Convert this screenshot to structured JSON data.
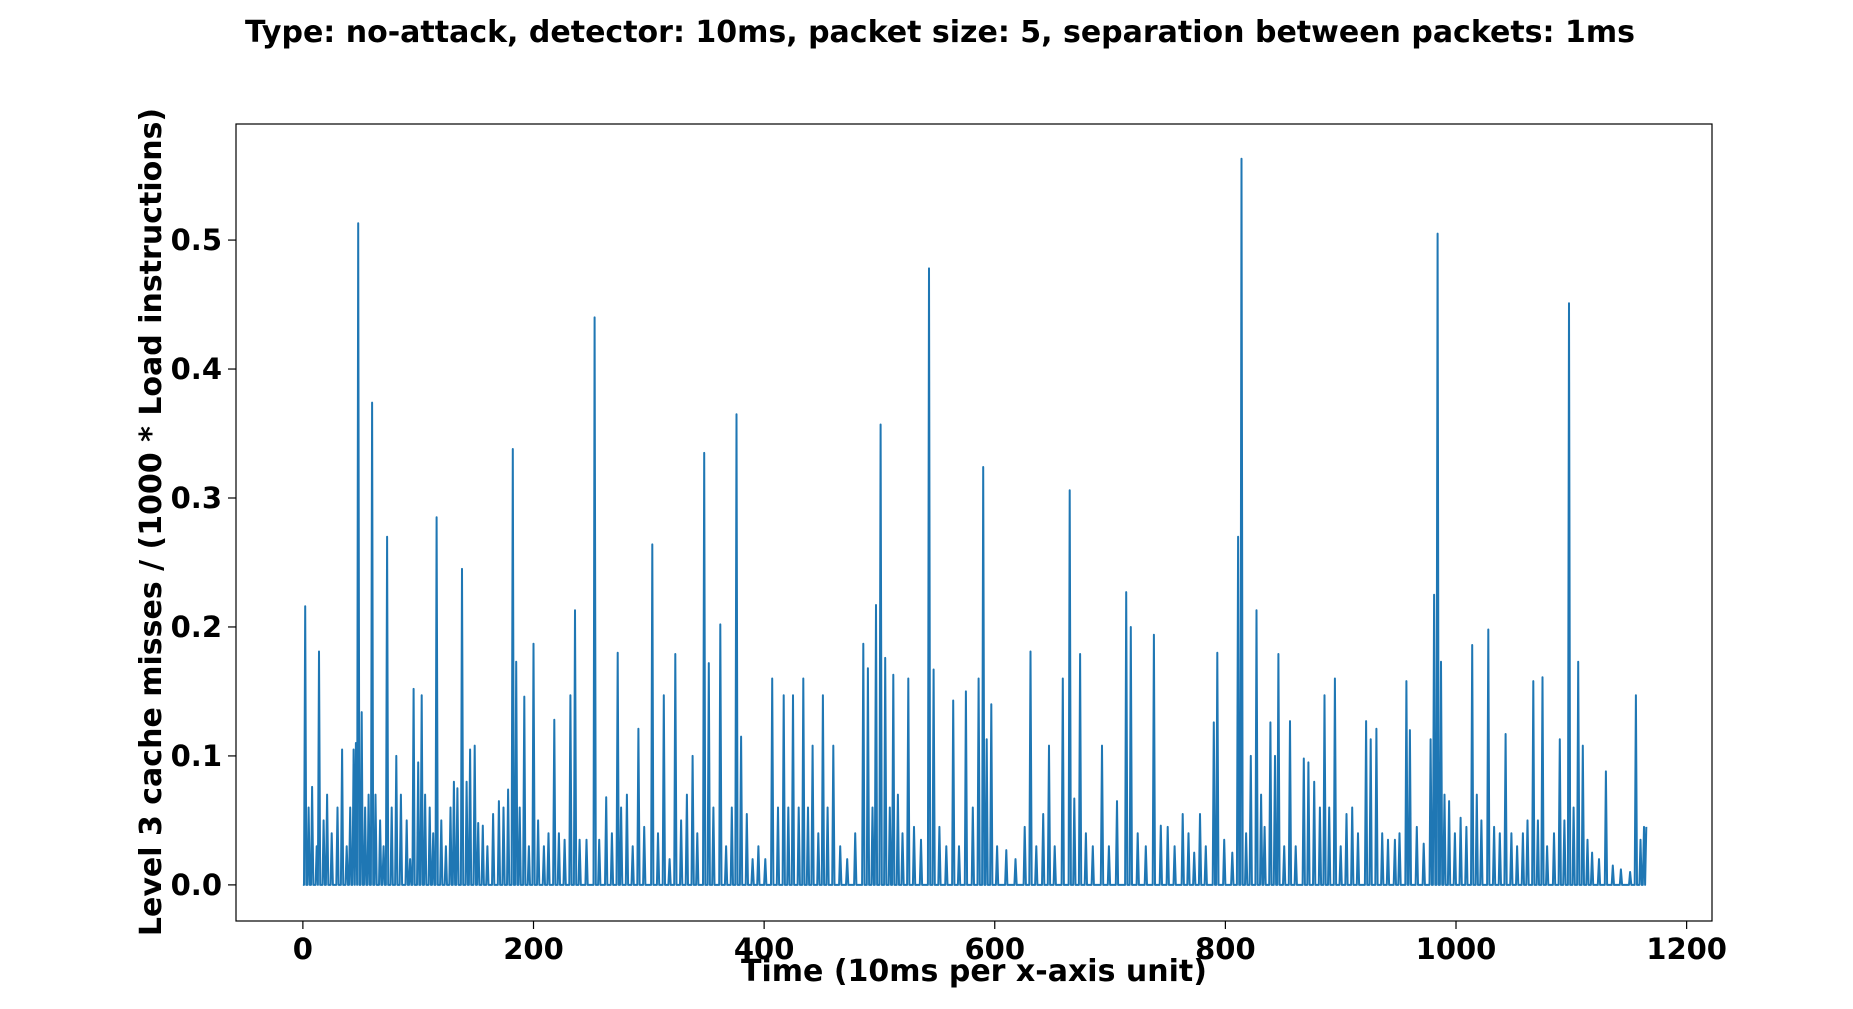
{
  "chart_data": {
    "type": "line",
    "title": "Type: no-attack,   detector: 10ms,   packet size: 5,   separation between packets: 1ms",
    "xlabel": "Time (10ms per x-axis unit)",
    "ylabel": "Level 3 cache misses / (1000 * Load instructions)",
    "xlim": [
      -58,
      1222
    ],
    "ylim": [
      -0.028,
      0.59
    ],
    "xticks": [
      0,
      200,
      400,
      600,
      800,
      1000,
      1200
    ],
    "xtick_labels": [
      "0",
      "200",
      "400",
      "600",
      "800",
      "1000",
      "1200"
    ],
    "yticks": [
      0.0,
      0.1,
      0.2,
      0.3,
      0.4,
      0.5
    ],
    "ytick_labels": [
      "0.0",
      "0.1",
      "0.2",
      "0.3",
      "0.4",
      "0.5"
    ],
    "grid": false,
    "line_color": "#1f77b4",
    "series": [
      {
        "x_start": 0,
        "x_end": 1165,
        "baseline": 0.0,
        "peaks": [
          [
            2,
            0.216
          ],
          [
            5,
            0.06
          ],
          [
            8,
            0.076
          ],
          [
            12,
            0.03
          ],
          [
            14,
            0.181
          ],
          [
            18,
            0.05
          ],
          [
            21,
            0.07
          ],
          [
            25,
            0.04
          ],
          [
            30,
            0.06
          ],
          [
            34,
            0.105
          ],
          [
            38,
            0.03
          ],
          [
            41,
            0.06
          ],
          [
            44,
            0.105
          ],
          [
            46,
            0.11
          ],
          [
            48,
            0.513
          ],
          [
            51,
            0.134
          ],
          [
            54,
            0.06
          ],
          [
            57,
            0.07
          ],
          [
            60,
            0.374
          ],
          [
            63,
            0.07
          ],
          [
            67,
            0.05
          ],
          [
            70,
            0.03
          ],
          [
            73,
            0.27
          ],
          [
            77,
            0.06
          ],
          [
            81,
            0.1
          ],
          [
            85,
            0.07
          ],
          [
            90,
            0.05
          ],
          [
            93,
            0.02
          ],
          [
            96,
            0.152
          ],
          [
            100,
            0.095
          ],
          [
            103,
            0.147
          ],
          [
            106,
            0.07
          ],
          [
            110,
            0.06
          ],
          [
            113,
            0.04
          ],
          [
            116,
            0.285
          ],
          [
            120,
            0.05
          ],
          [
            124,
            0.03
          ],
          [
            128,
            0.06
          ],
          [
            131,
            0.08
          ],
          [
            134,
            0.075
          ],
          [
            138,
            0.245
          ],
          [
            142,
            0.08
          ],
          [
            145,
            0.105
          ],
          [
            149,
            0.108
          ],
          [
            152,
            0.048
          ],
          [
            156,
            0.046
          ],
          [
            160,
            0.03
          ],
          [
            165,
            0.055
          ],
          [
            170,
            0.065
          ],
          [
            174,
            0.06
          ],
          [
            178,
            0.074
          ],
          [
            182,
            0.338
          ],
          [
            185,
            0.173
          ],
          [
            188,
            0.06
          ],
          [
            192,
            0.146
          ],
          [
            196,
            0.03
          ],
          [
            200,
            0.187
          ],
          [
            204,
            0.05
          ],
          [
            209,
            0.03
          ],
          [
            213,
            0.04
          ],
          [
            218,
            0.128
          ],
          [
            222,
            0.04
          ],
          [
            227,
            0.035
          ],
          [
            232,
            0.147
          ],
          [
            236,
            0.213
          ],
          [
            240,
            0.035
          ],
          [
            246,
            0.035
          ],
          [
            253,
            0.44
          ],
          [
            257,
            0.035
          ],
          [
            263,
            0.068
          ],
          [
            268,
            0.04
          ],
          [
            273,
            0.18
          ],
          [
            276,
            0.06
          ],
          [
            281,
            0.07
          ],
          [
            286,
            0.03
          ],
          [
            291,
            0.121
          ],
          [
            296,
            0.045
          ],
          [
            303,
            0.264
          ],
          [
            308,
            0.04
          ],
          [
            313,
            0.147
          ],
          [
            318,
            0.02
          ],
          [
            323,
            0.179
          ],
          [
            328,
            0.05
          ],
          [
            333,
            0.07
          ],
          [
            338,
            0.1
          ],
          [
            342,
            0.04
          ],
          [
            348,
            0.335
          ],
          [
            352,
            0.172
          ],
          [
            356,
            0.06
          ],
          [
            362,
            0.202
          ],
          [
            367,
            0.03
          ],
          [
            372,
            0.06
          ],
          [
            376,
            0.365
          ],
          [
            380,
            0.115
          ],
          [
            385,
            0.055
          ],
          [
            390,
            0.02
          ],
          [
            395,
            0.03
          ],
          [
            401,
            0.02
          ],
          [
            407,
            0.16
          ],
          [
            412,
            0.06
          ],
          [
            417,
            0.147
          ],
          [
            421,
            0.06
          ],
          [
            425,
            0.147
          ],
          [
            430,
            0.06
          ],
          [
            434,
            0.16
          ],
          [
            438,
            0.06
          ],
          [
            442,
            0.108
          ],
          [
            447,
            0.04
          ],
          [
            451,
            0.147
          ],
          [
            455,
            0.06
          ],
          [
            460,
            0.108
          ],
          [
            466,
            0.03
          ],
          [
            472,
            0.02
          ],
          [
            479,
            0.04
          ],
          [
            486,
            0.187
          ],
          [
            490,
            0.168
          ],
          [
            494,
            0.06
          ],
          [
            497,
            0.217
          ],
          [
            501,
            0.357
          ],
          [
            505,
            0.176
          ],
          [
            509,
            0.06
          ],
          [
            512,
            0.163
          ],
          [
            516,
            0.07
          ],
          [
            520,
            0.04
          ],
          [
            525,
            0.16
          ],
          [
            530,
            0.045
          ],
          [
            536,
            0.035
          ],
          [
            543,
            0.478
          ],
          [
            547,
            0.167
          ],
          [
            552,
            0.045
          ],
          [
            558,
            0.03
          ],
          [
            564,
            0.143
          ],
          [
            569,
            0.03
          ],
          [
            575,
            0.15
          ],
          [
            581,
            0.06
          ],
          [
            586,
            0.16
          ],
          [
            590,
            0.324
          ],
          [
            593,
            0.113
          ],
          [
            597,
            0.14
          ],
          [
            602,
            0.03
          ],
          [
            610,
            0.027
          ],
          [
            618,
            0.02
          ],
          [
            626,
            0.045
          ],
          [
            631,
            0.181
          ],
          [
            636,
            0.03
          ],
          [
            642,
            0.055
          ],
          [
            647,
            0.108
          ],
          [
            652,
            0.03
          ],
          [
            659,
            0.16
          ],
          [
            665,
            0.306
          ],
          [
            669,
            0.067
          ],
          [
            674,
            0.179
          ],
          [
            679,
            0.04
          ],
          [
            685,
            0.03
          ],
          [
            693,
            0.108
          ],
          [
            699,
            0.03
          ],
          [
            706,
            0.065
          ],
          [
            714,
            0.227
          ],
          [
            718,
            0.2
          ],
          [
            724,
            0.04
          ],
          [
            731,
            0.03
          ],
          [
            738,
            0.194
          ],
          [
            744,
            0.046
          ],
          [
            750,
            0.045
          ],
          [
            756,
            0.03
          ],
          [
            763,
            0.055
          ],
          [
            768,
            0.04
          ],
          [
            773,
            0.025
          ],
          [
            778,
            0.055
          ],
          [
            783,
            0.03
          ],
          [
            790,
            0.126
          ],
          [
            793,
            0.18
          ],
          [
            799,
            0.035
          ],
          [
            806,
            0.025
          ],
          [
            811,
            0.27
          ],
          [
            814,
            0.563
          ],
          [
            818,
            0.04
          ],
          [
            822,
            0.1
          ],
          [
            827,
            0.213
          ],
          [
            831,
            0.07
          ],
          [
            834,
            0.045
          ],
          [
            839,
            0.126
          ],
          [
            843,
            0.1
          ],
          [
            846,
            0.179
          ],
          [
            851,
            0.03
          ],
          [
            856,
            0.127
          ],
          [
            861,
            0.03
          ],
          [
            868,
            0.098
          ],
          [
            872,
            0.095
          ],
          [
            877,
            0.08
          ],
          [
            882,
            0.06
          ],
          [
            886,
            0.147
          ],
          [
            890,
            0.06
          ],
          [
            895,
            0.16
          ],
          [
            900,
            0.03
          ],
          [
            905,
            0.055
          ],
          [
            910,
            0.06
          ],
          [
            915,
            0.04
          ],
          [
            922,
            0.127
          ],
          [
            926,
            0.113
          ],
          [
            931,
            0.121
          ],
          [
            936,
            0.04
          ],
          [
            941,
            0.035
          ],
          [
            947,
            0.035
          ],
          [
            951,
            0.04
          ],
          [
            957,
            0.158
          ],
          [
            960,
            0.12
          ],
          [
            966,
            0.045
          ],
          [
            972,
            0.032
          ],
          [
            978,
            0.113
          ],
          [
            981,
            0.225
          ],
          [
            984,
            0.505
          ],
          [
            987,
            0.173
          ],
          [
            990,
            0.07
          ],
          [
            994,
            0.065
          ],
          [
            999,
            0.04
          ],
          [
            1004,
            0.052
          ],
          [
            1009,
            0.045
          ],
          [
            1014,
            0.186
          ],
          [
            1018,
            0.07
          ],
          [
            1022,
            0.05
          ],
          [
            1028,
            0.198
          ],
          [
            1033,
            0.045
          ],
          [
            1038,
            0.04
          ],
          [
            1043,
            0.117
          ],
          [
            1048,
            0.04
          ],
          [
            1053,
            0.03
          ],
          [
            1058,
            0.04
          ],
          [
            1062,
            0.05
          ],
          [
            1067,
            0.158
          ],
          [
            1071,
            0.05
          ],
          [
            1075,
            0.161
          ],
          [
            1079,
            0.03
          ],
          [
            1085,
            0.04
          ],
          [
            1090,
            0.113
          ],
          [
            1094,
            0.05
          ],
          [
            1098,
            0.451
          ],
          [
            1102,
            0.06
          ],
          [
            1106,
            0.173
          ],
          [
            1110,
            0.108
          ],
          [
            1114,
            0.035
          ],
          [
            1118,
            0.025
          ],
          [
            1124,
            0.02
          ],
          [
            1130,
            0.088
          ],
          [
            1136,
            0.015
          ],
          [
            1143,
            0.012
          ],
          [
            1151,
            0.01
          ],
          [
            1156,
            0.147
          ],
          [
            1160,
            0.035
          ],
          [
            1163,
            0.045
          ]
        ]
      }
    ]
  }
}
